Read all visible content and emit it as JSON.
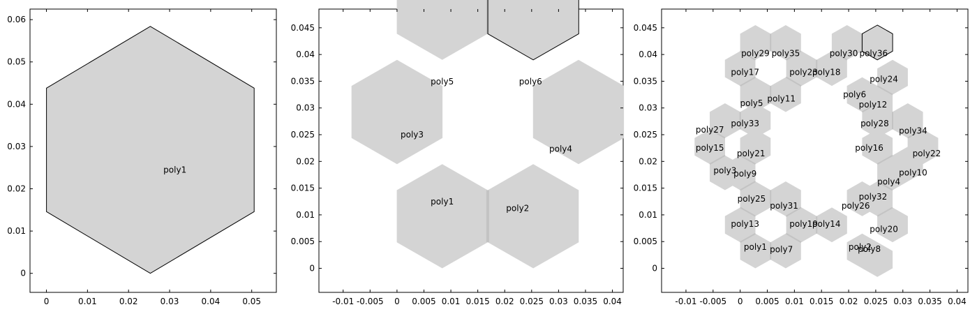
{
  "colors": {
    "fill": "#d4d4d4",
    "outline": "#000000",
    "seam": "#c3c3c3",
    "background": "#ffffff"
  },
  "chart_data": [
    {
      "type": "geometry",
      "title": "",
      "xlabel": "",
      "ylabel": "",
      "grid": false,
      "xlim": [
        -0.004,
        0.056
      ],
      "ylim": [
        -0.0045,
        0.0625
      ],
      "xticks": [
        0,
        0.01,
        0.02,
        0.03,
        0.04,
        0.05
      ],
      "xtick_labels": [
        "0",
        "0.01",
        "0.02",
        "0.03",
        "0.04",
        "0.05"
      ],
      "yticks": [
        0,
        0.01,
        0.02,
        0.03,
        0.04,
        0.05,
        0.06
      ],
      "ytick_labels": [
        "0",
        "0.01",
        "0.02",
        "0.03",
        "0.04",
        "0.05",
        "0.06"
      ],
      "hex_radius": 0.0292,
      "polygons": [
        {
          "name": "poly1",
          "center": [
            0.0253,
            0.0292
          ],
          "selected": true,
          "label_at": [
            0.0313,
            0.0245
          ]
        }
      ]
    },
    {
      "type": "geometry",
      "title": "",
      "xlabel": "",
      "ylabel": "",
      "grid": false,
      "xlim": [
        -0.0145,
        0.042
      ],
      "ylim": [
        -0.0045,
        0.0485
      ],
      "xticks": [
        -0.01,
        -0.005,
        0,
        0.005,
        0.01,
        0.015,
        0.02,
        0.025,
        0.03,
        0.035,
        0.04
      ],
      "xtick_labels": [
        "-0.01",
        "-0.005",
        "0",
        "0.005",
        "0.01",
        "0.015",
        "0.02",
        "0.025",
        "0.03",
        "0.035",
        "0.04"
      ],
      "yticks": [
        0,
        0.005,
        0.01,
        0.015,
        0.02,
        0.025,
        0.03,
        0.035,
        0.04,
        0.045
      ],
      "ytick_labels": [
        "0",
        "0.005",
        "0.01",
        "0.015",
        "0.02",
        "0.025",
        "0.03",
        "0.035",
        "0.04",
        "0.045"
      ],
      "hex_radius": 0.00975,
      "polygons": [
        {
          "name": "poly1",
          "center": [
            0.0084,
            0.00975
          ],
          "selected": false,
          "label_at": [
            0.0084,
            0.0125
          ]
        },
        {
          "name": "poly2",
          "center": [
            0.0253,
            0.00975
          ],
          "selected": false,
          "label_at": [
            0.0224,
            0.0112
          ]
        },
        {
          "name": "poly3",
          "center": [
            0.0,
            0.02925
          ],
          "selected": false,
          "label_at": [
            0.0028,
            0.025
          ]
        },
        {
          "name": "poly4",
          "center": [
            0.0337,
            0.02925
          ],
          "selected": false,
          "label_at": [
            0.0304,
            0.0223
          ]
        },
        {
          "name": "poly5",
          "center": [
            0.0084,
            0.04875
          ],
          "selected": false,
          "label_at": [
            0.0084,
            0.0349
          ]
        },
        {
          "name": "poly6",
          "center": [
            0.0253,
            0.04875
          ],
          "selected": true,
          "label_at": [
            0.0248,
            0.0349
          ]
        }
      ]
    },
    {
      "type": "geometry",
      "title": "",
      "xlabel": "",
      "ylabel": "",
      "grid": false,
      "xlim": [
        -0.0145,
        0.042
      ],
      "ylim": [
        -0.0045,
        0.0485
      ],
      "xticks": [
        -0.01,
        -0.005,
        0,
        0.005,
        0.01,
        0.015,
        0.02,
        0.025,
        0.03,
        0.035,
        0.04
      ],
      "xtick_labels": [
        "-0.01",
        "-0.005",
        "0",
        "0.005",
        "0.01",
        "0.015",
        "0.02",
        "0.025",
        "0.03",
        "0.035",
        "0.04"
      ],
      "yticks": [
        0,
        0.005,
        0.01,
        0.015,
        0.02,
        0.025,
        0.03,
        0.035,
        0.04,
        0.045
      ],
      "ytick_labels": [
        "0",
        "0.005",
        "0.01",
        "0.015",
        "0.02",
        "0.025",
        "0.03",
        "0.035",
        "0.04",
        "0.045"
      ],
      "hex_radius": 0.00325,
      "polygons": [
        {
          "name": "poly1",
          "center": [
            0.0028,
            0.00325
          ],
          "selected": false,
          "label_at": [
            0.0028,
            0.004
          ]
        },
        {
          "name": "poly2",
          "center": [
            0.0225,
            0.00325
          ],
          "selected": false,
          "label_at": [
            0.0221,
            0.004
          ]
        },
        {
          "name": "poly3",
          "center": [
            -0.0028,
            0.01788
          ],
          "selected": false,
          "label_at": [
            -0.0028,
            0.0183
          ]
        },
        {
          "name": "poly4",
          "center": [
            0.0281,
            0.01788
          ],
          "selected": false,
          "label_at": [
            0.0274,
            0.0162
          ]
        },
        {
          "name": "poly5",
          "center": [
            0.0028,
            0.0325
          ],
          "selected": false,
          "label_at": [
            0.0021,
            0.0309
          ]
        },
        {
          "name": "poly6",
          "center": [
            0.0225,
            0.0325
          ],
          "selected": false,
          "label_at": [
            0.0211,
            0.0325
          ]
        },
        {
          "name": "poly7",
          "center": [
            0.0084,
            0.00325
          ],
          "selected": false,
          "label_at": [
            0.0076,
            0.0035
          ]
        },
        {
          "name": "poly8",
          "center": [
            0.0253,
            0.00163
          ],
          "selected": false,
          "label_at": [
            0.0238,
            0.0036
          ]
        },
        {
          "name": "poly9",
          "center": [
            0.0,
            0.01788
          ],
          "selected": false,
          "label_at": [
            0.0009,
            0.0177
          ]
        },
        {
          "name": "poly10",
          "center": [
            0.0309,
            0.0195
          ],
          "selected": false,
          "label_at": [
            0.0319,
            0.0179
          ]
        },
        {
          "name": "poly11",
          "center": [
            0.0084,
            0.0325
          ],
          "selected": false,
          "label_at": [
            0.0076,
            0.0317
          ]
        },
        {
          "name": "poly12",
          "center": [
            0.0253,
            0.03088
          ],
          "selected": false,
          "label_at": [
            0.0245,
            0.0306
          ]
        },
        {
          "name": "poly13",
          "center": [
            0.0,
            0.00813
          ],
          "selected": false,
          "label_at": [
            0.0009,
            0.0083
          ]
        },
        {
          "name": "poly14",
          "center": [
            0.0169,
            0.00813
          ],
          "selected": false,
          "label_at": [
            0.0159,
            0.0083
          ]
        },
        {
          "name": "poly15",
          "center": [
            -0.0056,
            0.02275
          ],
          "selected": false,
          "label_at": [
            -0.0056,
            0.0225
          ]
        },
        {
          "name": "poly16",
          "center": [
            0.0253,
            0.02275
          ],
          "selected": false,
          "label_at": [
            0.0238,
            0.0225
          ]
        },
        {
          "name": "poly17",
          "center": [
            0.0,
            0.03738
          ],
          "selected": false,
          "label_at": [
            0.0009,
            0.0367
          ]
        },
        {
          "name": "poly18",
          "center": [
            0.0169,
            0.03738
          ],
          "selected": false,
          "label_at": [
            0.0159,
            0.0367
          ]
        },
        {
          "name": "poly19",
          "center": [
            0.0113,
            0.00813
          ],
          "selected": false,
          "label_at": [
            0.0117,
            0.0083
          ]
        },
        {
          "name": "poly20",
          "center": [
            0.0281,
            0.00813
          ],
          "selected": false,
          "label_at": [
            0.0265,
            0.0073
          ]
        },
        {
          "name": "poly21",
          "center": [
            0.0028,
            0.02275
          ],
          "selected": false,
          "label_at": [
            0.002,
            0.0215
          ]
        },
        {
          "name": "poly22",
          "center": [
            0.0337,
            0.02275
          ],
          "selected": false,
          "label_at": [
            0.0344,
            0.0215
          ]
        },
        {
          "name": "poly23",
          "center": [
            0.0113,
            0.03738
          ],
          "selected": false,
          "label_at": [
            0.0117,
            0.0367
          ]
        },
        {
          "name": "poly24",
          "center": [
            0.0281,
            0.03575
          ],
          "selected": false,
          "label_at": [
            0.0265,
            0.0354
          ]
        },
        {
          "name": "poly25",
          "center": [
            0.0028,
            0.013
          ],
          "selected": false,
          "label_at": [
            0.0021,
            0.013
          ]
        },
        {
          "name": "poly26",
          "center": [
            0.0225,
            0.013
          ],
          "selected": false,
          "label_at": [
            0.0213,
            0.0117
          ]
        },
        {
          "name": "poly27",
          "center": [
            -0.0028,
            0.02763
          ],
          "selected": false,
          "label_at": [
            -0.0056,
            0.0259
          ]
        },
        {
          "name": "poly28",
          "center": [
            0.0253,
            0.02763
          ],
          "selected": false,
          "label_at": [
            0.0248,
            0.0271
          ]
        },
        {
          "name": "poly29",
          "center": [
            0.0028,
            0.04225
          ],
          "selected": false,
          "label_at": [
            0.0028,
            0.0402
          ]
        },
        {
          "name": "poly30",
          "center": [
            0.0197,
            0.04225
          ],
          "selected": false,
          "label_at": [
            0.0191,
            0.0402
          ]
        },
        {
          "name": "poly31",
          "center": [
            0.0084,
            0.013
          ],
          "selected": false,
          "label_at": [
            0.0081,
            0.0117
          ]
        },
        {
          "name": "poly32",
          "center": [
            0.0253,
            0.013
          ],
          "selected": false,
          "label_at": [
            0.0245,
            0.0134
          ]
        },
        {
          "name": "poly33",
          "center": [
            0.0028,
            0.02763
          ],
          "selected": false,
          "label_at": [
            0.0009,
            0.0271
          ]
        },
        {
          "name": "poly34",
          "center": [
            0.0309,
            0.02763
          ],
          "selected": false,
          "label_at": [
            0.0319,
            0.0257
          ]
        },
        {
          "name": "poly35",
          "center": [
            0.0084,
            0.04225
          ],
          "selected": false,
          "label_at": [
            0.0084,
            0.0402
          ]
        },
        {
          "name": "poly36",
          "center": [
            0.0253,
            0.04225
          ],
          "selected": true,
          "label_at": [
            0.0246,
            0.0402
          ]
        }
      ]
    }
  ]
}
